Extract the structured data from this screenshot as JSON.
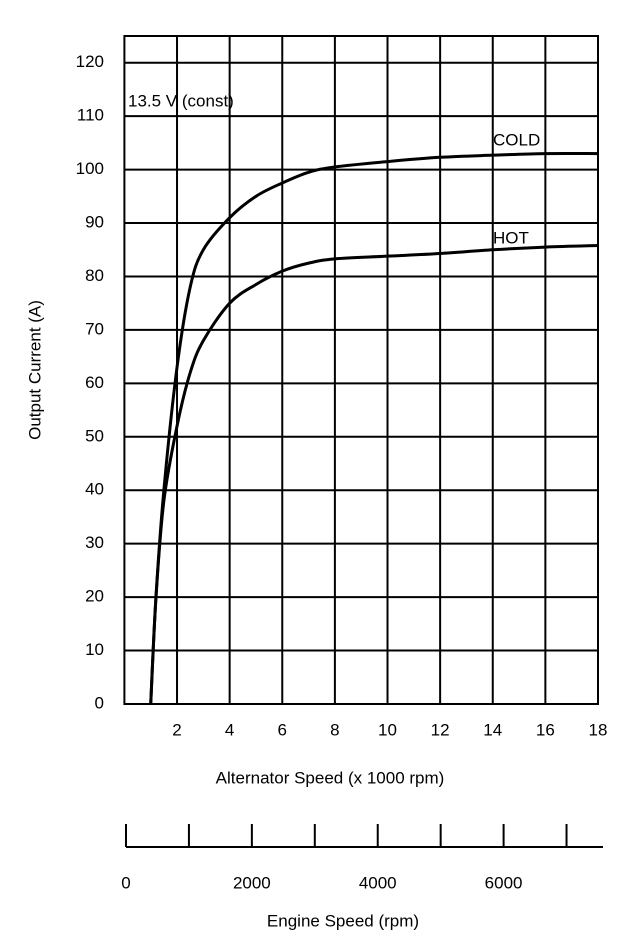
{
  "chart_data": {
    "type": "line",
    "annotation": "13.5 V (const)",
    "x_label": "Alternator Speed (x 1000 rpm)",
    "y_label": "Output Current (A)",
    "x": [
      1,
      1.2,
      1.5,
      2,
      2.5,
      3,
      4,
      5,
      6,
      7,
      8,
      10,
      12,
      14,
      16,
      18
    ],
    "series": [
      {
        "name": "COLD",
        "color": "#000000",
        "values": [
          0,
          20,
          40,
          63,
          78,
          85,
          91,
          95,
          97.5,
          99.5,
          100.5,
          101.5,
          102.3,
          102.7,
          103,
          103
        ]
      },
      {
        "name": "HOT",
        "color": "#000000",
        "values": [
          0,
          20,
          38,
          52,
          62,
          68,
          75,
          78.5,
          81,
          82.5,
          83.3,
          83.8,
          84.3,
          85,
          85.5,
          85.8
        ]
      }
    ],
    "xlim": [
      0,
      18
    ],
    "xticks": [
      2,
      4,
      6,
      8,
      10,
      12,
      14,
      16,
      18
    ],
    "ylim": [
      0,
      125
    ],
    "yticks": [
      0,
      10,
      20,
      30,
      40,
      50,
      60,
      70,
      80,
      90,
      100,
      110,
      120
    ],
    "grid": true,
    "secondary_x_axis": {
      "label": "Engine Speed (rpm)",
      "xlim": [
        0,
        7500
      ],
      "xticks": [
        0,
        2000,
        4000,
        6000
      ],
      "minor_ticks": [
        1000,
        3000,
        5000,
        7000
      ]
    }
  }
}
